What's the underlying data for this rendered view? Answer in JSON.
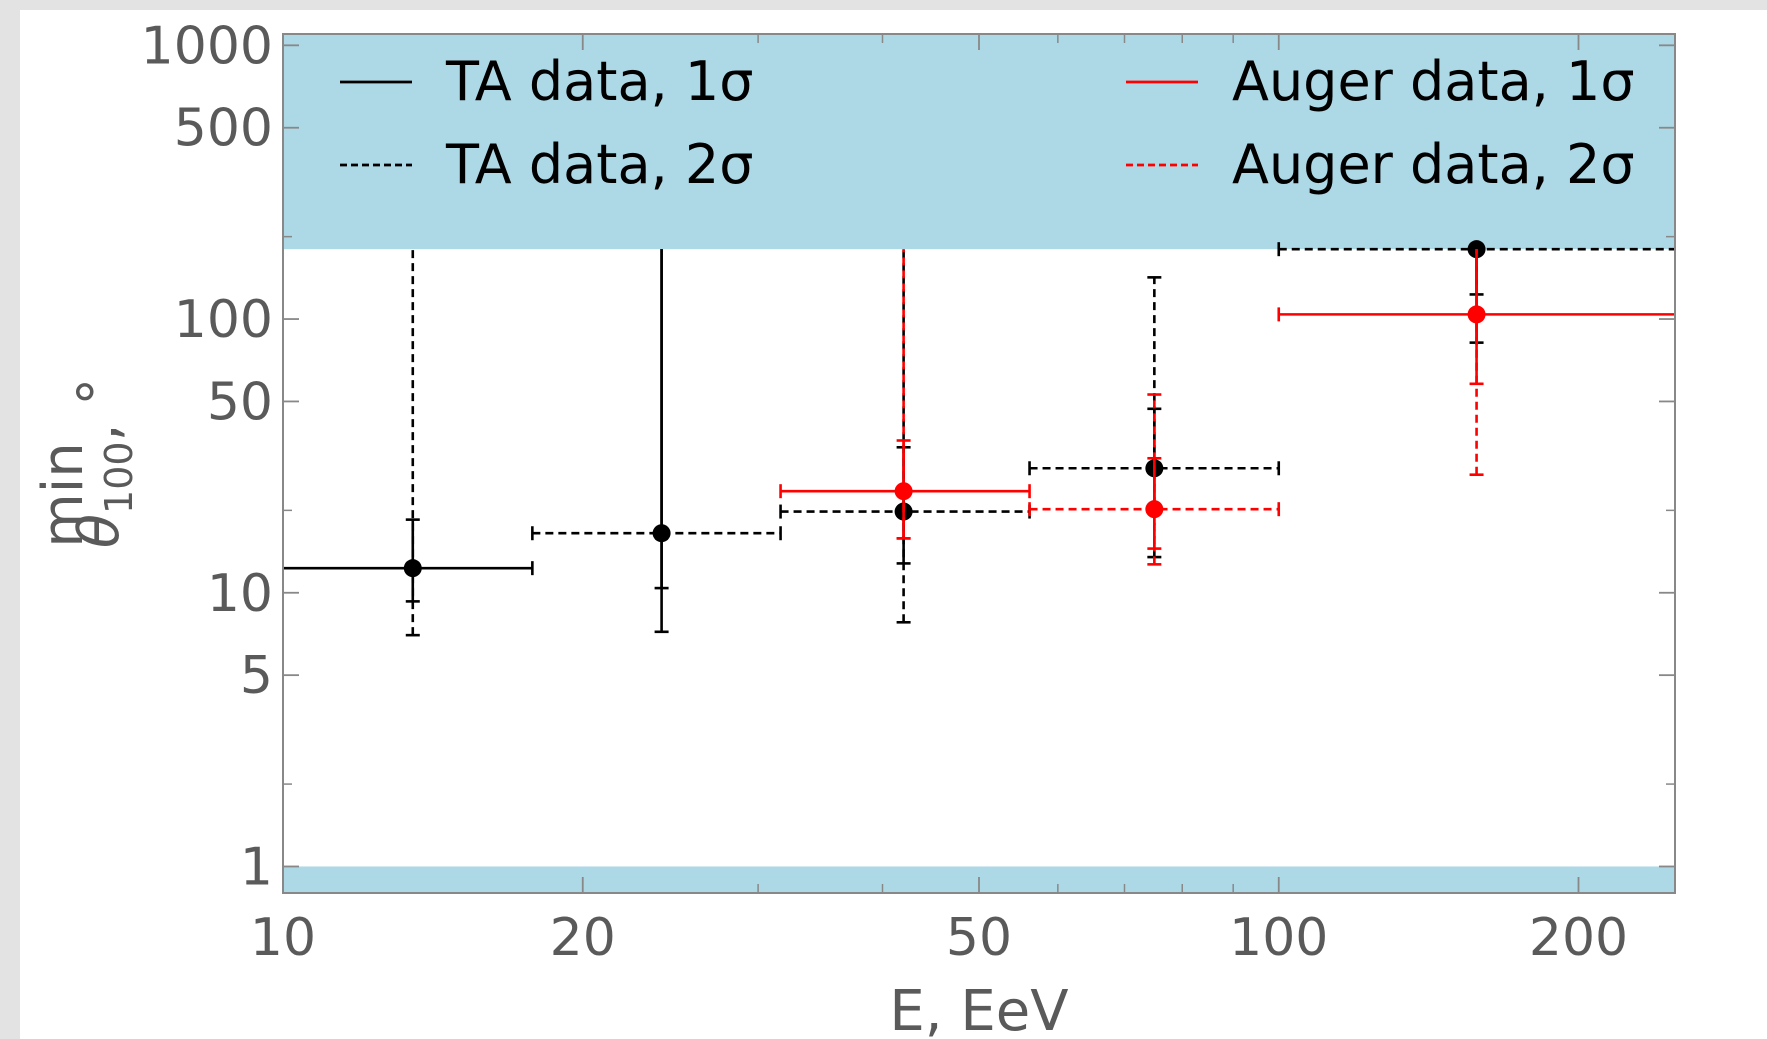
{
  "chart_data": {
    "type": "scatter",
    "xlabel": "E, EeV",
    "ylabel_main": "θ",
    "ylabel_sup": "min",
    "ylabel_sub": "100",
    "ylabel_suffix": ", °",
    "x_scale": "log",
    "y_scale": "log",
    "xlim": [
      10,
      250
    ],
    "ylim": [
      0.8,
      1100
    ],
    "x_ticks": [
      {
        "value": 10,
        "label": "10"
      },
      {
        "value": 20,
        "label": "20"
      },
      {
        "value": 50,
        "label": "50"
      },
      {
        "value": 100,
        "label": "100"
      },
      {
        "value": 200,
        "label": "200"
      }
    ],
    "y_ticks": [
      {
        "value": 1,
        "label": "1"
      },
      {
        "value": 5,
        "label": "5"
      },
      {
        "value": 10,
        "label": "10"
      },
      {
        "value": 50,
        "label": "50"
      },
      {
        "value": 100,
        "label": "100"
      },
      {
        "value": 500,
        "label": "500"
      },
      {
        "value": 1000,
        "label": "1000"
      }
    ],
    "excluded_regions": [
      {
        "y_from": 180,
        "y_to": 1100,
        "color": "#add8e6"
      },
      {
        "y_from": 0.8,
        "y_to": 1,
        "color": "#add8e6"
      }
    ],
    "legend": [
      {
        "label": "TA data, 1σ",
        "color": "#000000",
        "style": "solid",
        "placement": "upper-left"
      },
      {
        "label": "TA data, 2σ",
        "color": "#000000",
        "style": "dashed",
        "placement": "upper-left"
      },
      {
        "label": "Auger data, 1σ",
        "color": "#ff0000",
        "style": "solid",
        "placement": "upper-right"
      },
      {
        "label": "Auger data, 2σ",
        "color": "#ff0000",
        "style": "dashed",
        "placement": "upper-right"
      }
    ],
    "series": [
      {
        "name": "TA data",
        "color": "#000000",
        "points": [
          {
            "x": 13.5,
            "x_lo": 10,
            "x_hi": 17.8,
            "y": 12.3,
            "e1_lo": 9.3,
            "e1_hi": 18.5,
            "e2_lo": 7.0,
            "e2_hi": 180,
            "bin_style": "solid",
            "main_bar": "dashed"
          },
          {
            "x": 24,
            "x_lo": 17.8,
            "x_hi": 31.6,
            "y": 16.5,
            "e1_lo": 10.4,
            "e1_hi": 180,
            "e2_lo": 7.2,
            "e2_hi": 180,
            "bin_style": "dashed",
            "main_bar": "solid"
          },
          {
            "x": 42,
            "x_lo": 31.6,
            "x_hi": 56.2,
            "y": 19.8,
            "e1_lo": 12.8,
            "e1_hi": 34,
            "e2_lo": 7.8,
            "e2_hi": 180,
            "bin_style": "dashed",
            "main_bar": "dashed"
          },
          {
            "x": 75,
            "x_lo": 56.2,
            "x_hi": 100,
            "y": 28.5,
            "e1_lo": 20.5,
            "e1_hi": 47,
            "e2_lo": 13.5,
            "e2_hi": 142,
            "bin_style": "dashed",
            "main_bar": "dashed"
          },
          {
            "x": 158,
            "x_lo": 100,
            "x_hi": 250,
            "y": 180,
            "e1_lo": 123,
            "e1_hi": 180,
            "e2_lo": 82,
            "e2_hi": 180,
            "bin_style": "dashed",
            "main_bar": "solid"
          }
        ]
      },
      {
        "name": "Auger data",
        "color": "#ff0000",
        "points": [
          {
            "x": 42,
            "x_lo": 31.6,
            "x_hi": 56.2,
            "y": 23.5,
            "e1_lo": 15.8,
            "e1_hi": 36,
            "e2_lo": 15.8,
            "e2_hi": 180,
            "bin_style": "solid",
            "main_bar": "dashed"
          },
          {
            "x": 75,
            "x_lo": 56.2,
            "x_hi": 100,
            "y": 20.2,
            "e1_lo": 14.5,
            "e1_hi": 31,
            "e2_lo": 12.7,
            "e2_hi": 53,
            "bin_style": "dashed",
            "main_bar": "dashed"
          },
          {
            "x": 158,
            "x_lo": 100,
            "x_hi": 250,
            "y": 104,
            "e1_lo": 58,
            "e1_hi": 180,
            "e2_lo": 27,
            "e2_hi": 180,
            "bin_style": "solid",
            "main_bar": "dashed"
          }
        ]
      }
    ]
  }
}
